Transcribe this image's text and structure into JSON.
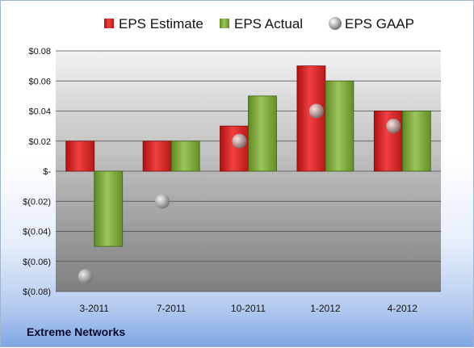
{
  "chart_data": {
    "type": "bar",
    "categories": [
      "3-2011",
      "7-2011",
      "10-2011",
      "1-2012",
      "4-2012"
    ],
    "series": [
      {
        "name": "EPS Estimate",
        "values": [
          0.02,
          0.02,
          0.03,
          0.07,
          0.04
        ],
        "color": "#d02020"
      },
      {
        "name": "EPS Actual",
        "values": [
          -0.05,
          0.02,
          0.05,
          0.06,
          0.04
        ],
        "color": "#7ea83a"
      },
      {
        "name": "EPS GAAP",
        "values": [
          -0.07,
          -0.02,
          0.02,
          0.04,
          0.03
        ],
        "color": "#a8a8a8",
        "marker": "sphere"
      }
    ],
    "ylim": [
      -0.08,
      0.08
    ],
    "yticks": [
      {
        "value": 0.08,
        "label": "$0.08"
      },
      {
        "value": 0.06,
        "label": "$0.06"
      },
      {
        "value": 0.04,
        "label": "$0.04"
      },
      {
        "value": 0.02,
        "label": "$0.02"
      },
      {
        "value": 0,
        "label": "$-"
      },
      {
        "value": -0.02,
        "label": "$(0.02)"
      },
      {
        "value": -0.04,
        "label": "$(0.04)"
      },
      {
        "value": -0.06,
        "label": "$(0.06)"
      },
      {
        "value": -0.08,
        "label": "$(0.08)"
      }
    ],
    "grid": true,
    "legend_position": "top"
  },
  "footer": {
    "company": "Extreme Networks"
  }
}
